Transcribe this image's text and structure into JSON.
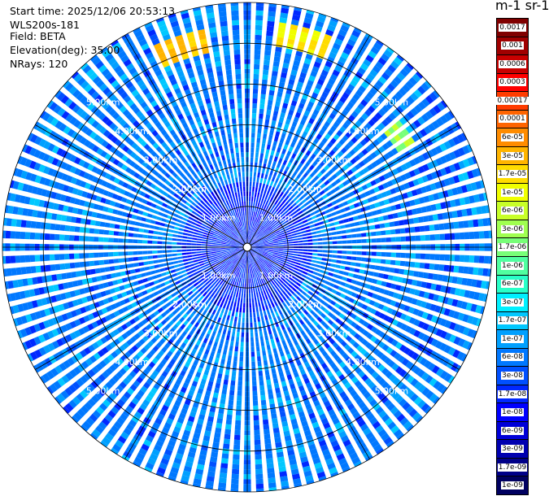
{
  "info": {
    "start_time": "Start time: 2025/12/06 20:53:13",
    "instrument": "WLS200s-181",
    "field": "Field: BETA",
    "elevation": "Elevation(deg): 35.00",
    "nrays": "NRays: 120"
  },
  "colorbar": {
    "title": "m-1 sr-1",
    "labels": [
      "0.0017",
      "0.001",
      "0.0006",
      "0.0003",
      "0.00017",
      "0.0001",
      "6e-05",
      "3e-05",
      "1.7e-05",
      "1e-05",
      "6e-06",
      "3e-06",
      "1.7e-06",
      "1e-06",
      "6e-07",
      "3e-07",
      "1.7e-07",
      "1e-07",
      "6e-08",
      "3e-08",
      "1.7e-08",
      "1e-08",
      "6e-09",
      "3e-09",
      "1.7e-09",
      "1e-09"
    ],
    "colors": [
      "#800000",
      "#a00000",
      "#c80000",
      "#ff0000",
      "#ff3c00",
      "#ff6400",
      "#ff8c00",
      "#ffb400",
      "#ffdc00",
      "#f0ff00",
      "#c8ff28",
      "#a0ff50",
      "#78ff78",
      "#50ffa0",
      "#28ffc8",
      "#00f0ff",
      "#00c8ff",
      "#00a0ff",
      "#0078ff",
      "#0050ff",
      "#0028ff",
      "#0000ff",
      "#0000d8",
      "#0000b0",
      "#000088",
      "#000060"
    ],
    "label_dark_text_from": 18
  },
  "chart_data": {
    "type": "heatmap",
    "projection": "polar-ppi",
    "nrays": 120,
    "max_range_km": 6.0,
    "rings_km": [
      1,
      2,
      3,
      4,
      5,
      6
    ],
    "ring_label_texts": [
      "1.00km",
      "2.00km",
      "3.00km",
      "4.00km",
      "5.00km"
    ],
    "spoke_angles_deg": [
      0,
      30,
      60,
      90,
      120,
      150,
      180,
      210,
      240,
      270,
      300,
      330
    ],
    "background_value": "3e-08",
    "features": [
      {
        "azimuth_deg": [
          -25,
          -12
        ],
        "range_km": [
          4.8,
          5.4
        ],
        "value_range": [
          "3e-05",
          "1.7e-05"
        ]
      },
      {
        "azimuth_deg": [
          9,
          22
        ],
        "range_km": [
          4.9,
          5.5
        ],
        "value_range": [
          "1.7e-05",
          "1e-05"
        ]
      },
      {
        "azimuth_deg": [
          50,
          58
        ],
        "range_km": [
          4.3,
          4.8
        ],
        "value_range": [
          "6e-06",
          "1.7e-06"
        ]
      }
    ]
  }
}
